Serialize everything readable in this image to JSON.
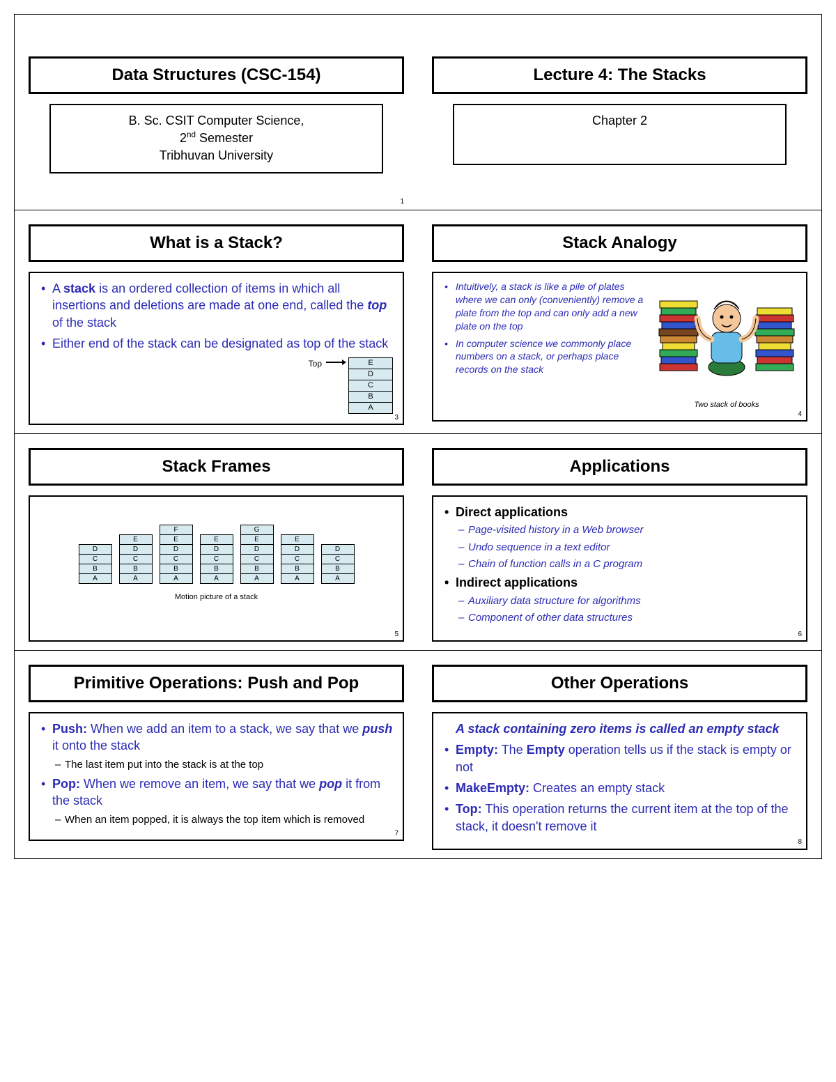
{
  "colors": {
    "text_primary": "#000000",
    "text_accent": "#2b2bb5",
    "stack_fill": "#d6eaf0",
    "border": "#000000",
    "background": "#ffffff"
  },
  "header": {
    "left_title": "Data Structures (CSC-154)",
    "left_sub_line1": "B. Sc. CSIT Computer Science,",
    "left_sub_line2_before": "2",
    "left_sub_line2_sup": "nd",
    "left_sub_line2_after": " Semester",
    "left_sub_line3": "Tribhuvan University",
    "right_title": "Lecture 4: The Stacks",
    "right_sub": "Chapter 2",
    "slide_num_left": "1"
  },
  "what_is_stack": {
    "title": "What is a Stack?",
    "b1_pre": "A ",
    "b1_strong1": "stack",
    "b1_mid": " is an ordered collection of items in which all insertions and deletions are made at one end, called the ",
    "b1_strong2": "top",
    "b1_post": " of the stack",
    "b2": "Either end of the stack can be designated as top of the stack",
    "top_label": "Top",
    "cells": [
      "E",
      "D",
      "C",
      "B",
      "A"
    ],
    "slide_num": "3"
  },
  "analogy": {
    "title": "Stack Analogy",
    "b1": "Intuitively, a stack is like a pile of plates where we can only (conveniently) remove a plate from the top and can only add a new plate on the top",
    "b2": "In computer science we commonly place numbers on a stack, or perhaps place records on the stack",
    "caption": "Two stack of books",
    "slide_num": "4"
  },
  "frames": {
    "title": "Stack Frames",
    "stacks": [
      [
        "D",
        "C",
        "B",
        "A"
      ],
      [
        "E",
        "D",
        "C",
        "B",
        "A"
      ],
      [
        "F",
        "E",
        "D",
        "C",
        "B",
        "A"
      ],
      [
        "E",
        "D",
        "C",
        "B",
        "A"
      ],
      [
        "G",
        "E",
        "D",
        "C",
        "B",
        "A"
      ],
      [
        "E",
        "D",
        "C",
        "B",
        "A"
      ],
      [
        "D",
        "C",
        "B",
        "A"
      ]
    ],
    "caption": "Motion picture of a stack",
    "slide_num": "5"
  },
  "applications": {
    "title": "Applications",
    "h1": "Direct applications",
    "d1": "Page-visited history in a Web browser",
    "d2": "Undo sequence in a text editor",
    "d3": "Chain of function calls in a C program",
    "h2": "Indirect applications",
    "i1": "Auxiliary data structure for algorithms",
    "i2": "Component of other data structures",
    "slide_num": "6"
  },
  "pushpop": {
    "title": "Primitive Operations: Push and Pop",
    "b1_strong": "Push:",
    "b1_text_pre": " When we add an item to a stack, we say that we ",
    "b1_em": "push",
    "b1_text_post": " it onto the stack",
    "s1": "The last item put into the stack is at the top",
    "b2_strong": "Pop:",
    "b2_text_pre": " When we remove an item, we say that we ",
    "b2_em": "pop",
    "b2_text_post": " it from the stack",
    "s2": "When an item popped, it is always the top item which is removed",
    "slide_num": "7"
  },
  "other": {
    "title": "Other Operations",
    "intro": "A stack containing zero items is called an empty stack",
    "b1_strong": "Empty:",
    "b1_text_pre": " The ",
    "b1_strong2": "Empty",
    "b1_text_post": " operation tells us if the stack is empty or not",
    "b2_strong": "MakeEmpty:",
    "b2_text": " Creates an empty stack",
    "b3_strong": "Top:",
    "b3_text": " This operation returns the current item at the top of the stack, it doesn't remove it",
    "slide_num": "8"
  }
}
